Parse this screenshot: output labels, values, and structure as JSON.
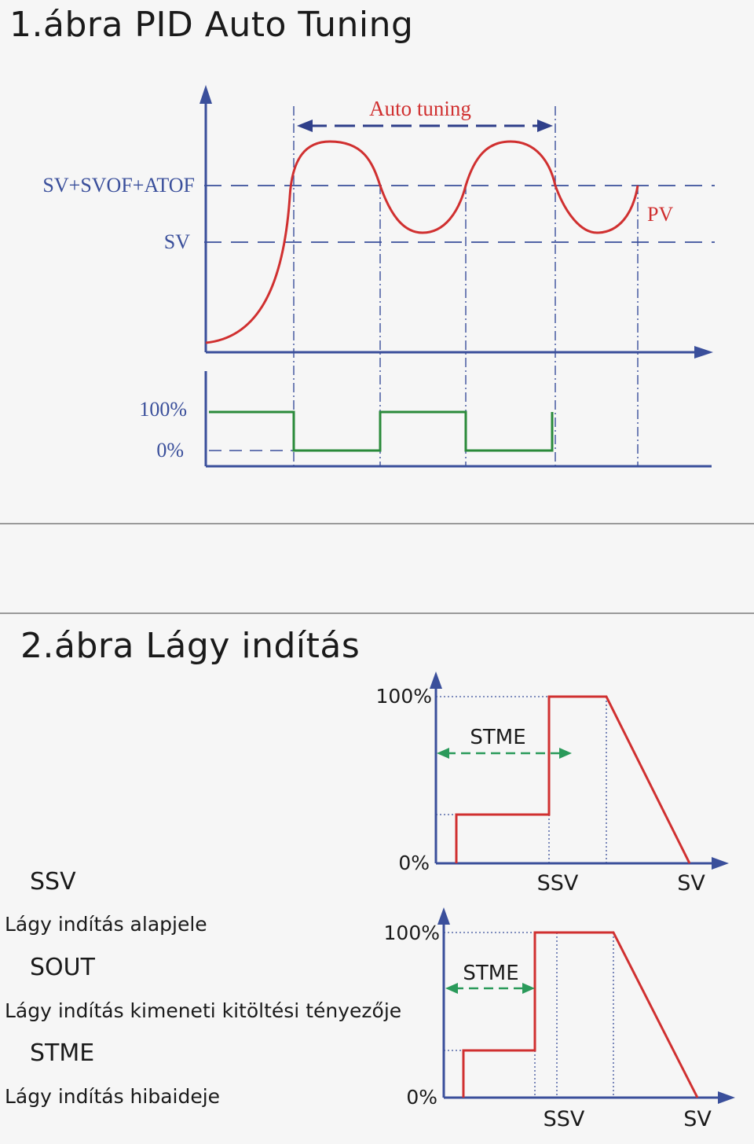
{
  "figure1": {
    "title": "1.ábra PID Auto Tuning",
    "auto_tuning_label": "Auto tuning",
    "y_label_upper": "SV+SVOF+ATOF",
    "y_label_sv": "SV",
    "pv_label": "PV",
    "out_100": "100%",
    "out_0": "0%"
  },
  "figure2": {
    "title": "2.ábra Lágy indítás",
    "chart_a": {
      "y_top": "100%",
      "y_zero": "0%",
      "stme": "STME",
      "x_ssv": "SSV",
      "x_sv": "SV"
    },
    "chart_b": {
      "y_top": "100%",
      "y_zero": "0%",
      "stme": "STME",
      "x_ssv": "SSV",
      "x_sv": "SV"
    }
  },
  "legend": [
    {
      "key": "SSV",
      "desc": "Lágy indítás alapjele"
    },
    {
      "key": "SOUT",
      "desc": "Lágy indítás kimeneti kitöltési tényezője"
    },
    {
      "key": "STME",
      "desc": "Lágy indítás hibaideje"
    }
  ],
  "colors": {
    "axis": "#3a4f9b",
    "pv_curve": "#d03030",
    "output": "#2a8a3a",
    "stme_arrow": "#2a9a5a",
    "label_blue": "#3a4f9b",
    "label_red": "#d03030"
  }
}
